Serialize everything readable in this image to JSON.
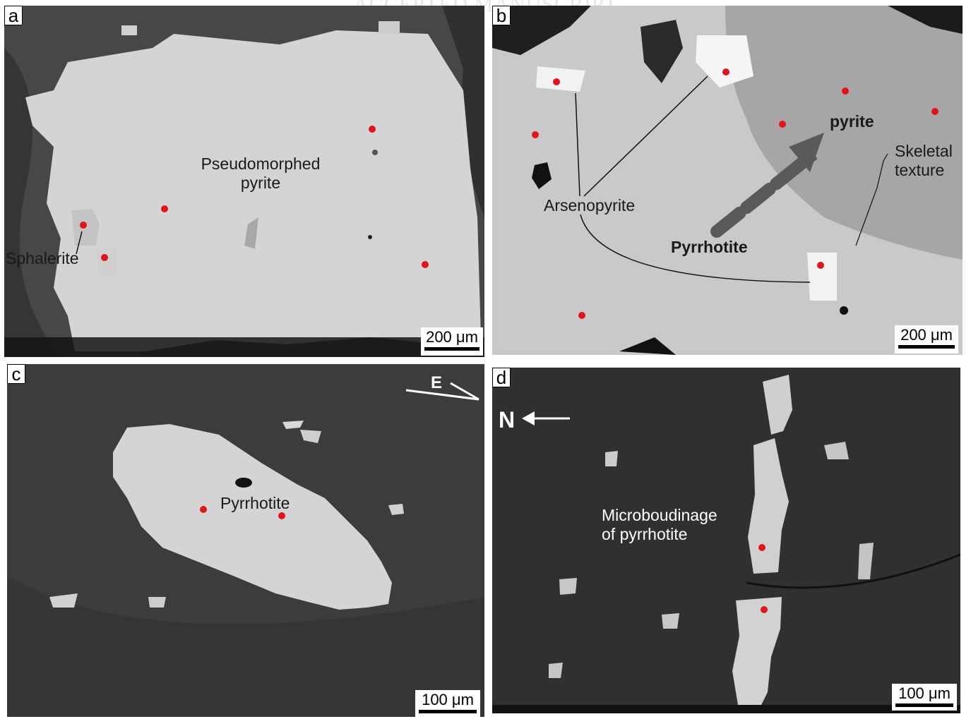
{
  "banner_text": "ACCEPTED MANUSCRIPT",
  "panels": {
    "a": {
      "label": "a",
      "text_mineral": "Pseudomorphed\npyrite",
      "text_sphalerite": "Sphalerite",
      "scale_bar": "200 μm"
    },
    "b": {
      "label": "b",
      "text_pyrite": "pyrite",
      "text_skeletal": "Skeletal\ntexture",
      "text_arsenopyrite": "Arsenopyrite",
      "text_pyrrhotite": "Pyrrhotite",
      "scale_bar": "200 μm"
    },
    "c": {
      "label": "c",
      "direction": "E",
      "text_pyrrhotite": "Pyrrhotite",
      "scale_bar": "100 μm"
    },
    "d": {
      "label": "d",
      "direction": "N",
      "text_microboudinage": "Microboudinage\nof pyrrhotite",
      "scale_bar": "100 μm"
    }
  },
  "colors": {
    "analysis_spot": "#e0151b",
    "sulfide_grain": "#d4d4d4",
    "matrix_dark": "#3a3a3a"
  }
}
